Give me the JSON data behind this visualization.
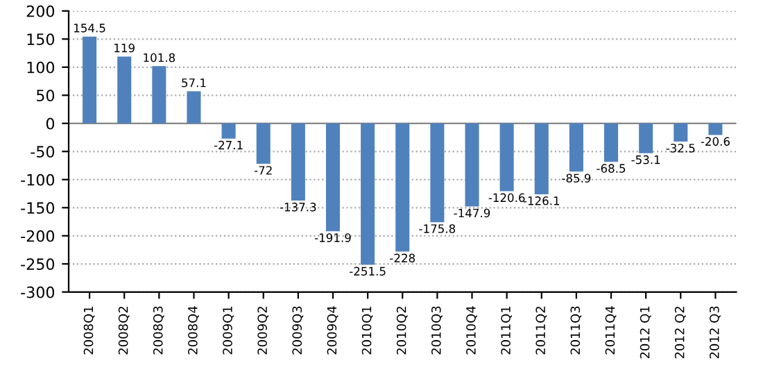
{
  "chart_data": {
    "type": "bar",
    "categories": [
      "2008Q1",
      "2008Q2",
      "2008Q3",
      "2008Q4",
      "2009Q1",
      "2009Q2",
      "2009Q3",
      "2009Q4",
      "2010Q1",
      "2010Q2",
      "2010Q3",
      "2010Q4",
      "2011Q1",
      "2011Q2",
      "2011Q3",
      "2011Q4",
      "2012 Q1",
      "2012 Q2",
      "2012 Q3"
    ],
    "values": [
      154.5,
      119,
      101.8,
      57.1,
      -27.1,
      -72,
      -137.3,
      -191.9,
      -251.5,
      -228,
      -175.8,
      -147.9,
      -120.6,
      -126.1,
      -85.9,
      -68.5,
      -53.1,
      -32.5,
      -20.6
    ],
    "color": "#4f81bd",
    "data_labels": true,
    "grid": "y",
    "legend": false,
    "ylim": [
      -300,
      200
    ],
    "yticks": [
      -300,
      -250,
      -200,
      -150,
      -100,
      -50,
      0,
      50,
      100,
      150,
      200
    ]
  }
}
